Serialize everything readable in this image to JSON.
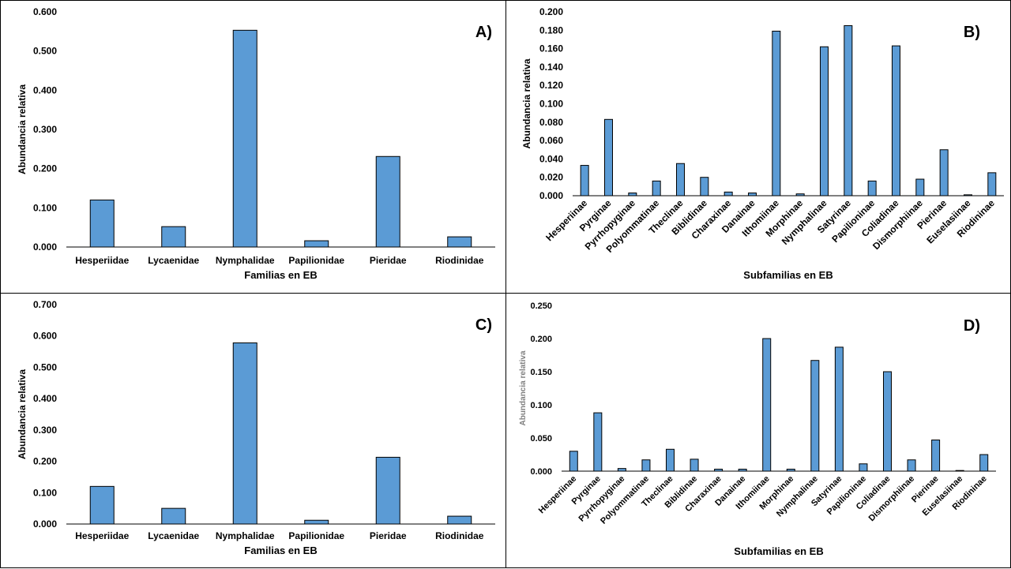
{
  "chart_data": [
    {
      "type": "bar",
      "panel_label": "A)",
      "xlabel": "Familias en EB",
      "ylabel": "Abundancia relativa",
      "ylim": [
        0,
        0.6
      ],
      "yticks": [
        "0.000",
        "0.100",
        "0.200",
        "0.300",
        "0.400",
        "0.500",
        "0.600"
      ],
      "categories": [
        "Hesperiidae",
        "Lycaenidae",
        "Nymphalidae",
        "Papilionidae",
        "Pieridae",
        "Riodinidae"
      ],
      "values": [
        0.12,
        0.052,
        0.553,
        0.016,
        0.231,
        0.026
      ],
      "bar_color": "#5B9BD5",
      "grid": false
    },
    {
      "type": "bar",
      "panel_label": "B)",
      "xlabel": "Subfamilias en EB",
      "ylabel": "Abundancia relativa",
      "ylim": [
        0,
        0.2
      ],
      "yticks": [
        "0.000",
        "0.020",
        "0.040",
        "0.060",
        "0.080",
        "0.100",
        "0.120",
        "0.140",
        "0.160",
        "0.180",
        "0.200"
      ],
      "categories": [
        "Hesperiinae",
        "Pyrginae",
        "Pyrrhopyginae",
        "Polyommatinae",
        "Theclinae",
        "Biblidinae",
        "Charaxinae",
        "Danainae",
        "Ithomiinae",
        "Morphinae",
        "Nymphalinae",
        "Satyrinae",
        "Papilioninae",
        "Coliadinae",
        "Dismorphiinae",
        "Pierinae",
        "Euselasiinae",
        "Riodininae"
      ],
      "values": [
        0.033,
        0.083,
        0.003,
        0.016,
        0.035,
        0.02,
        0.004,
        0.003,
        0.179,
        0.002,
        0.162,
        0.185,
        0.016,
        0.163,
        0.018,
        0.05,
        0.001,
        0.025
      ],
      "bar_color": "#5B9BD5",
      "grid": false
    },
    {
      "type": "bar",
      "panel_label": "C)",
      "xlabel": "Familias en EB",
      "ylabel": "Abundancia relativa",
      "ylim": [
        0,
        0.7
      ],
      "yticks": [
        "0.000",
        "0.100",
        "0.200",
        "0.300",
        "0.400",
        "0.500",
        "0.600",
        "0.700"
      ],
      "categories": [
        "Hesperiidae",
        "Lycaenidae",
        "Nymphalidae",
        "Papilionidae",
        "Pieridae",
        "Riodinidae"
      ],
      "values": [
        0.12,
        0.05,
        0.578,
        0.012,
        0.213,
        0.025
      ],
      "bar_color": "#5B9BD5",
      "grid": false
    },
    {
      "type": "bar",
      "panel_label": "D)",
      "xlabel": "Subfamilias en EB",
      "ylabel": "Abundancia relativa",
      "ylim": [
        0,
        0.25
      ],
      "yticks": [
        "0.000",
        "0.050",
        "0.100",
        "0.150",
        "0.200",
        "0.250"
      ],
      "categories": [
        "Hesperiinae",
        "Pyrginae",
        "Pyrrhopyginae",
        "Polyommatinae",
        "Theclinae",
        "Biblidinae",
        "Charaxinae",
        "Danainae",
        "Ithomiinae",
        "Morphinae",
        "Nymphalinae",
        "Satyrinae",
        "Papilioninae",
        "Coliadinae",
        "Dismorphiinae",
        "Pierinae",
        "Euselasiinae",
        "Riodininae"
      ],
      "values": [
        0.03,
        0.088,
        0.004,
        0.017,
        0.033,
        0.018,
        0.003,
        0.003,
        0.2,
        0.003,
        0.167,
        0.187,
        0.011,
        0.15,
        0.017,
        0.047,
        0.001,
        0.025
      ],
      "bar_color": "#5B9BD5",
      "grid": false
    }
  ]
}
